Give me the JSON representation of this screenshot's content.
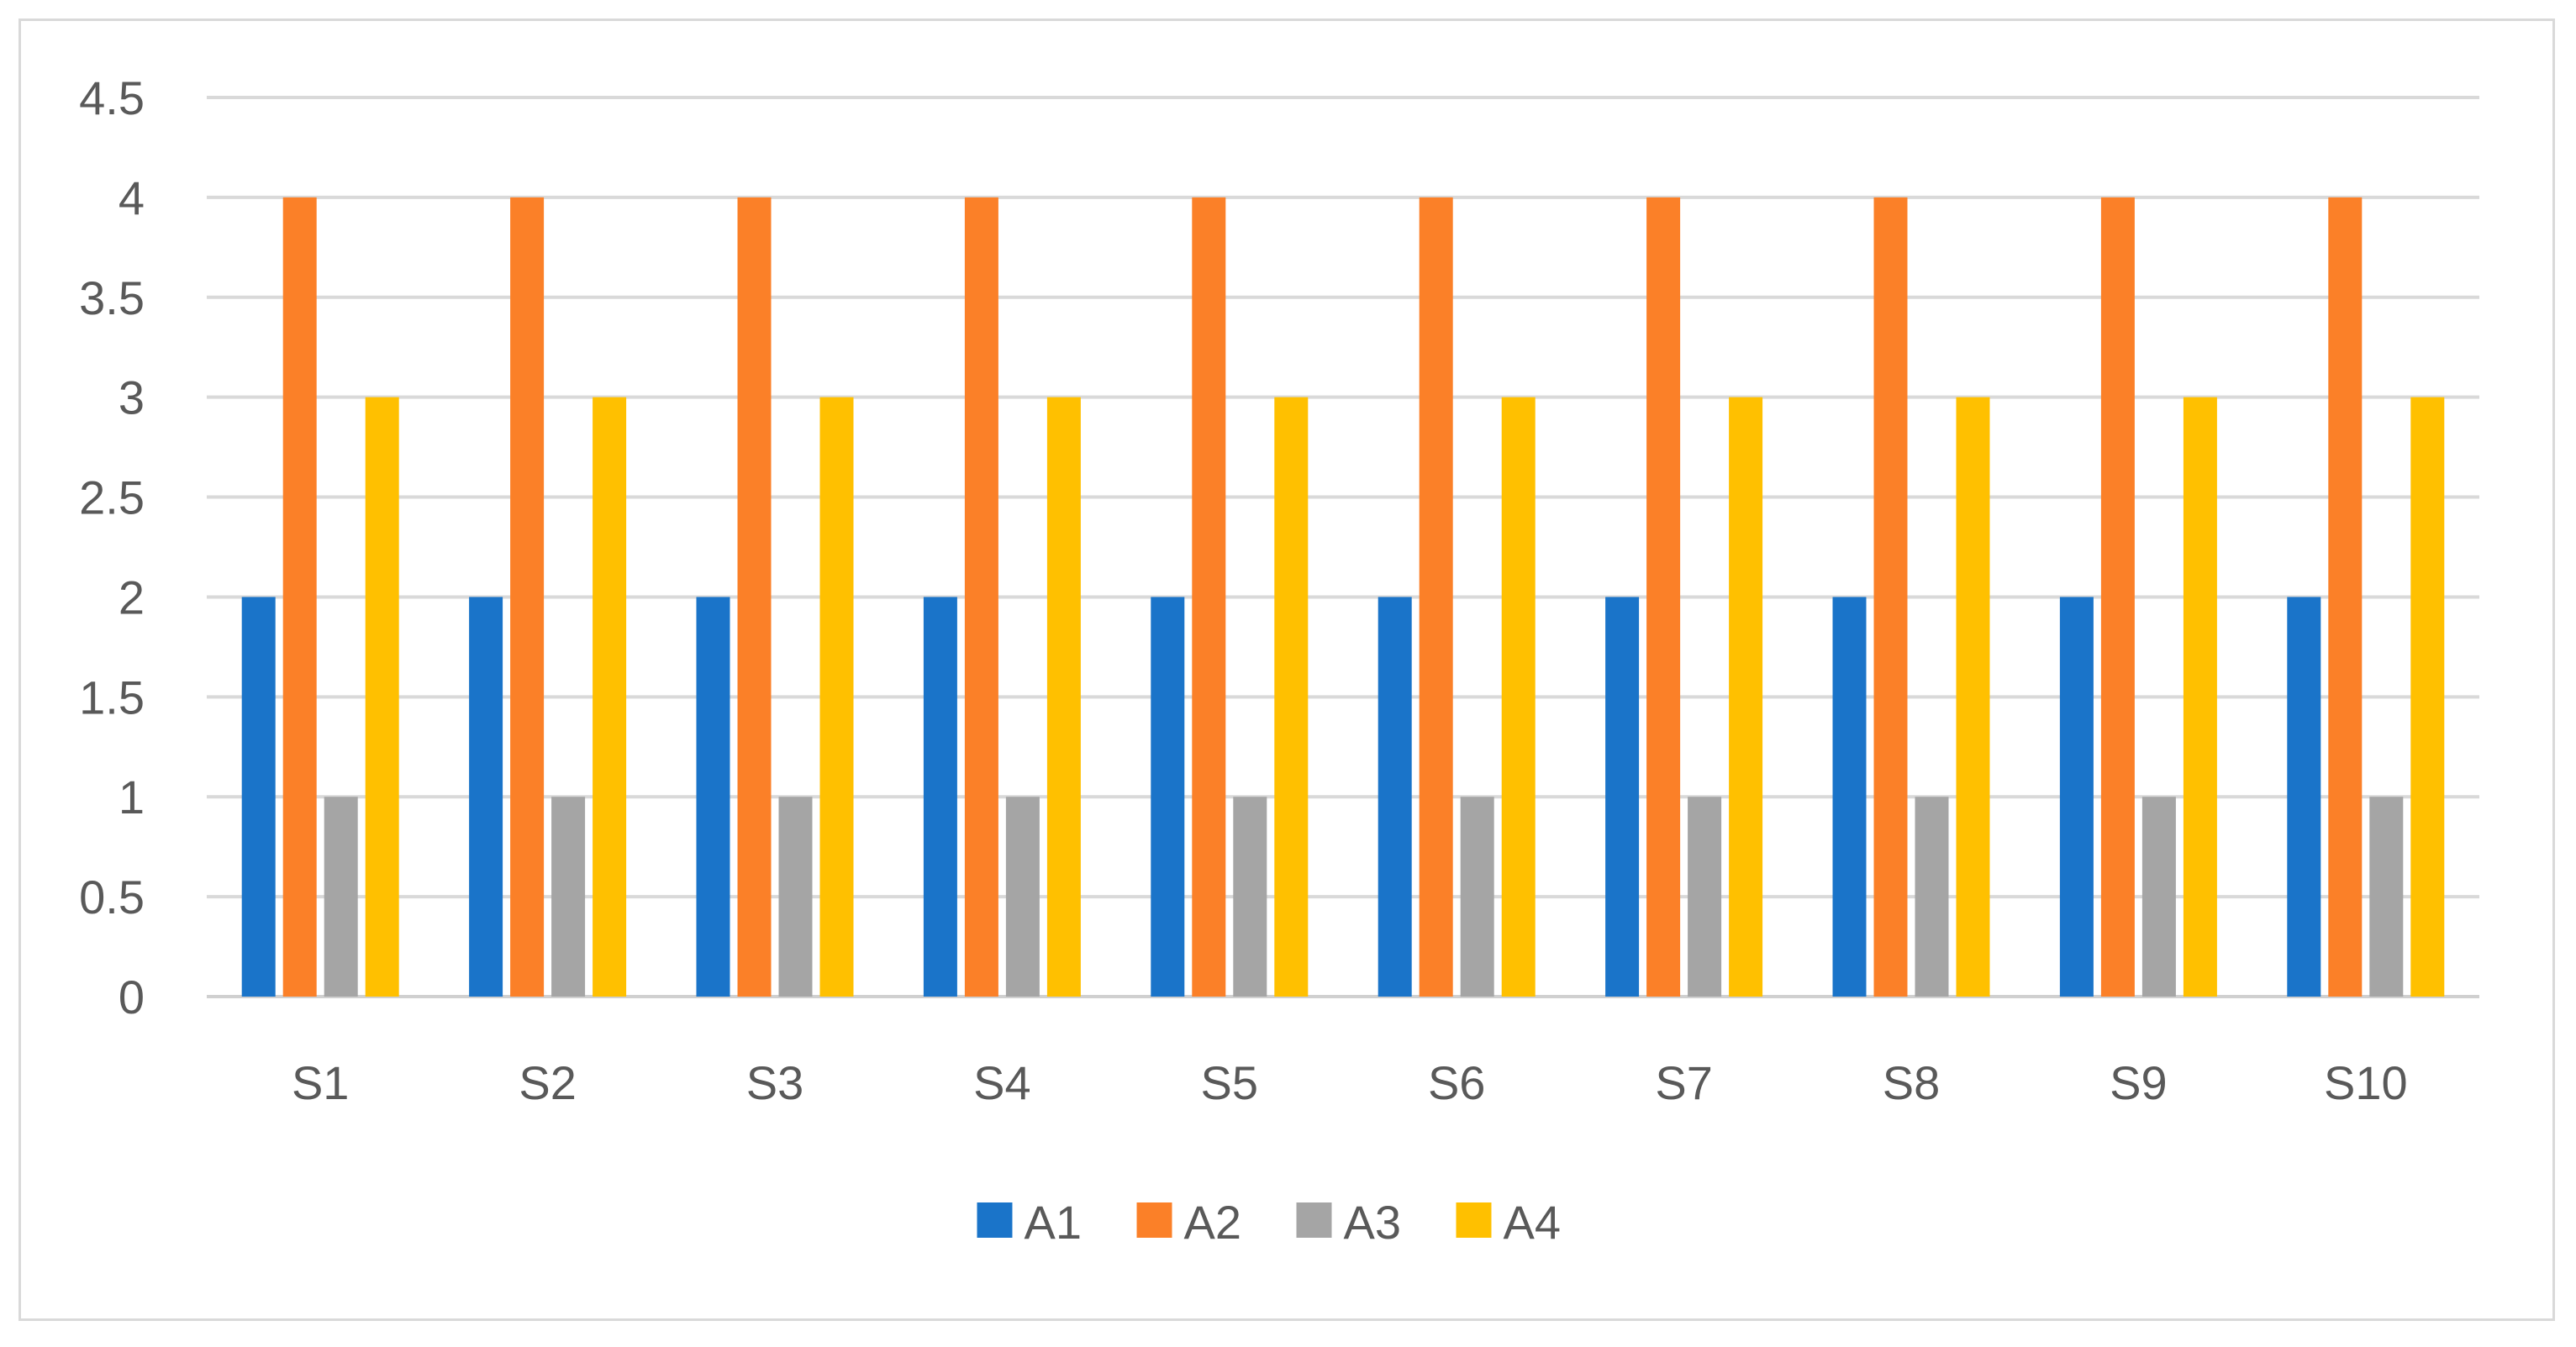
{
  "chart_data": {
    "type": "bar",
    "categories": [
      "S1",
      "S2",
      "S3",
      "S4",
      "S5",
      "S6",
      "S7",
      "S8",
      "S9",
      "S10"
    ],
    "series": [
      {
        "name": "A1",
        "color": "#1a74c9",
        "values": [
          2,
          2,
          2,
          2,
          2,
          2,
          2,
          2,
          2,
          2
        ]
      },
      {
        "name": "A2",
        "color": "#fb8028",
        "values": [
          4,
          4,
          4,
          4,
          4,
          4,
          4,
          4,
          4,
          4
        ]
      },
      {
        "name": "A3",
        "color": "#a5a5a5",
        "values": [
          1,
          1,
          1,
          1,
          1,
          1,
          1,
          1,
          1,
          1
        ]
      },
      {
        "name": "A4",
        "color": "#ffc000",
        "values": [
          3,
          3,
          3,
          3,
          3,
          3,
          3,
          3,
          3,
          3
        ]
      }
    ],
    "y_ticks": [
      "0",
      "0.5",
      "1",
      "1.5",
      "2",
      "2.5",
      "3",
      "3.5",
      "4",
      "4.5"
    ],
    "ylim": [
      0,
      4.5
    ],
    "grid": true,
    "legend_position": "bottom-center",
    "title": "",
    "xlabel": "",
    "ylabel": ""
  }
}
